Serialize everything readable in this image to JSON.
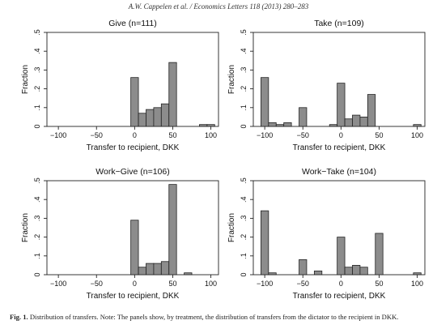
{
  "header": {
    "text": "A.W. Cappelen et al. / Economics Letters 118 (2013) 280–283"
  },
  "caption": {
    "label": "Fig. 1.",
    "text": "Distribution of transfers. Note: The panels show, by treatment, the distribution of transfers from the dictator to the recipient in DKK."
  },
  "chart_data": [
    {
      "type": "bar",
      "title": "Give (n=111)",
      "xlabel": "Transfer to recipient, DKK",
      "ylabel": "Fraction",
      "xlim": [
        -115,
        110
      ],
      "ylim": [
        0,
        0.5
      ],
      "xticks": [
        -100,
        -50,
        0,
        50,
        100
      ],
      "xtick_labels": [
        "−100",
        "−50",
        "0",
        "50",
        "100"
      ],
      "yticks": [
        0,
        0.1,
        0.2,
        0.3,
        0.4,
        0.5
      ],
      "ytick_labels": [
        "0",
        ".1",
        ".2",
        ".3",
        ".4",
        ".5"
      ],
      "bin_width": 10,
      "bars": [
        {
          "x": 0,
          "value": 0.26
        },
        {
          "x": 10,
          "value": 0.07
        },
        {
          "x": 20,
          "value": 0.09
        },
        {
          "x": 30,
          "value": 0.1
        },
        {
          "x": 40,
          "value": 0.12
        },
        {
          "x": 50,
          "value": 0.34
        },
        {
          "x": 90,
          "value": 0.01
        },
        {
          "x": 100,
          "value": 0.01
        }
      ]
    },
    {
      "type": "bar",
      "title": "Take (n=109)",
      "xlabel": "Transfer to recipient, DKK",
      "ylabel": "Fraction",
      "xlim": [
        -115,
        110
      ],
      "ylim": [
        0,
        0.5
      ],
      "xticks": [
        -100,
        -50,
        0,
        50,
        100
      ],
      "xtick_labels": [
        "−100",
        "−50",
        "0",
        "50",
        "100"
      ],
      "yticks": [
        0,
        0.1,
        0.2,
        0.3,
        0.4,
        0.5
      ],
      "ytick_labels": [
        "0",
        ".1",
        ".2",
        ".3",
        ".4",
        ".5"
      ],
      "bin_width": 10,
      "bars": [
        {
          "x": -100,
          "value": 0.26
        },
        {
          "x": -90,
          "value": 0.02
        },
        {
          "x": -80,
          "value": 0.01
        },
        {
          "x": -70,
          "value": 0.02
        },
        {
          "x": -50,
          "value": 0.1
        },
        {
          "x": -10,
          "value": 0.01
        },
        {
          "x": 0,
          "value": 0.23
        },
        {
          "x": 10,
          "value": 0.04
        },
        {
          "x": 20,
          "value": 0.06
        },
        {
          "x": 30,
          "value": 0.05
        },
        {
          "x": 40,
          "value": 0.17
        },
        {
          "x": 100,
          "value": 0.01
        }
      ]
    },
    {
      "type": "bar",
      "title": "Work−Give (n=106)",
      "xlabel": "Transfer to recipient, DKK",
      "ylabel": "Fraction",
      "xlim": [
        -115,
        110
      ],
      "ylim": [
        0,
        0.5
      ],
      "xticks": [
        -100,
        -50,
        0,
        50,
        100
      ],
      "xtick_labels": [
        "−100",
        "−50",
        "0",
        "50",
        "100"
      ],
      "yticks": [
        0,
        0.1,
        0.2,
        0.3,
        0.4,
        0.5
      ],
      "ytick_labels": [
        "0",
        ".1",
        ".2",
        ".3",
        ".4",
        ".5"
      ],
      "bin_width": 10,
      "bars": [
        {
          "x": 0,
          "value": 0.29
        },
        {
          "x": 10,
          "value": 0.04
        },
        {
          "x": 20,
          "value": 0.06
        },
        {
          "x": 30,
          "value": 0.06
        },
        {
          "x": 40,
          "value": 0.07
        },
        {
          "x": 50,
          "value": 0.48
        },
        {
          "x": 70,
          "value": 0.01
        }
      ]
    },
    {
      "type": "bar",
      "title": "Work−Take (n=104)",
      "xlabel": "Transfer to recipient, DKK",
      "ylabel": "Fraction",
      "xlim": [
        -115,
        110
      ],
      "ylim": [
        0,
        0.5
      ],
      "xticks": [
        -100,
        -50,
        0,
        50,
        100
      ],
      "xtick_labels": [
        "−100",
        "−50",
        "0",
        "50",
        "100"
      ],
      "yticks": [
        0,
        0.1,
        0.2,
        0.3,
        0.4,
        0.5
      ],
      "ytick_labels": [
        "0",
        ".1",
        ".2",
        ".3",
        ".4",
        ".5"
      ],
      "bin_width": 10,
      "bars": [
        {
          "x": -100,
          "value": 0.34
        },
        {
          "x": -90,
          "value": 0.01
        },
        {
          "x": -50,
          "value": 0.08
        },
        {
          "x": -30,
          "value": 0.02
        },
        {
          "x": 0,
          "value": 0.2
        },
        {
          "x": 10,
          "value": 0.04
        },
        {
          "x": 20,
          "value": 0.05
        },
        {
          "x": 30,
          "value": 0.04
        },
        {
          "x": 50,
          "value": 0.22
        },
        {
          "x": 100,
          "value": 0.01
        }
      ]
    }
  ],
  "colors": {
    "bar_fill": "#8c8c8c",
    "bar_stroke": "#222222",
    "axis": "#222222",
    "text": "#111111"
  }
}
